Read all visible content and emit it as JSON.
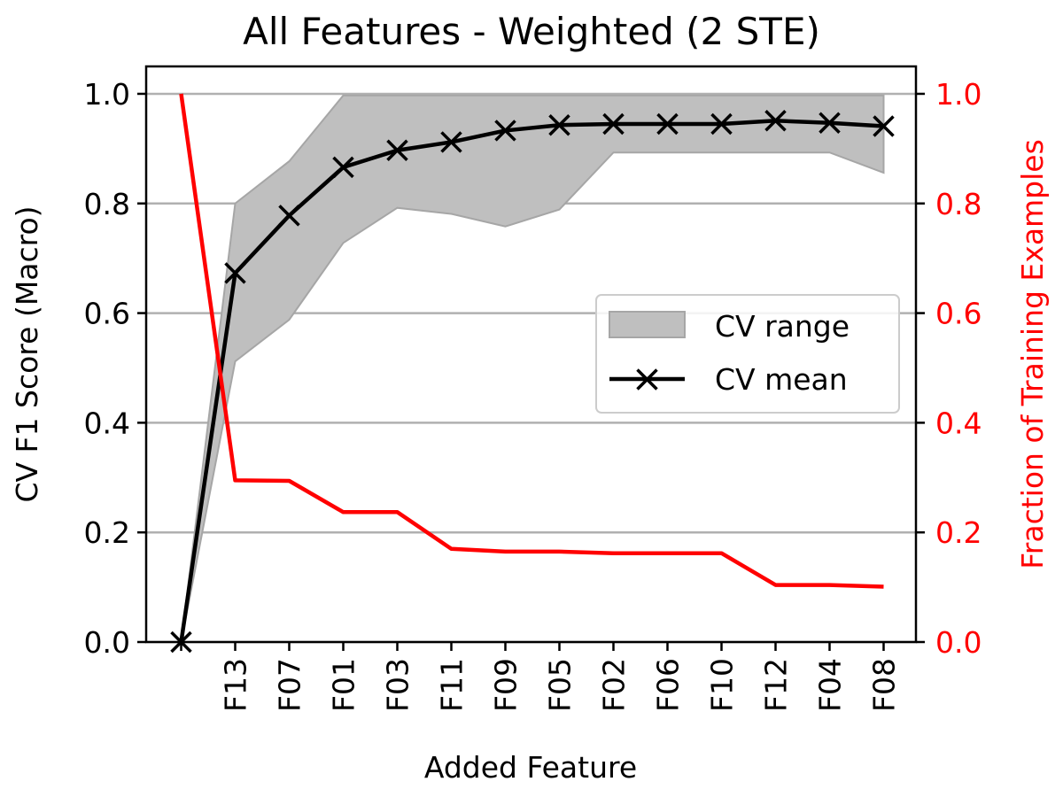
{
  "chart_data": {
    "type": "line",
    "title": "All Features - Weighted (2 STE)",
    "xlabel": "Added Feature",
    "ylabel": "CV F1 Score (Macro)",
    "ylabel_right": "Fraction of Training Examples",
    "categories": [
      "",
      "F13",
      "F07",
      "F01",
      "F03",
      "F11",
      "F09",
      "F05",
      "F02",
      "F06",
      "F10",
      "F12",
      "F04",
      "F08"
    ],
    "ylim": [
      0,
      1.05
    ],
    "ylim_right": [
      0,
      1.05
    ],
    "yticks": [
      "0.0",
      "0.2",
      "0.4",
      "0.6",
      "0.8",
      "1.0"
    ],
    "yticks_right": [
      "0.0",
      "0.2",
      "0.4",
      "0.6",
      "0.8",
      "1.0"
    ],
    "grid": "horizontal",
    "legend_position": "center-right",
    "series": [
      {
        "name": "CV mean",
        "color": "#000000",
        "marker": "x",
        "values": [
          0.0,
          0.673,
          0.778,
          0.866,
          0.897,
          0.912,
          0.933,
          0.943,
          0.945,
          0.945,
          0.945,
          0.951,
          0.947,
          0.941
        ]
      },
      {
        "name": "CV range",
        "type": "band",
        "color": "#bfbfbf",
        "upper": [
          0.0,
          0.8,
          0.877,
          0.997,
          0.997,
          0.997,
          0.997,
          0.997,
          0.997,
          0.997,
          0.997,
          0.997,
          0.997,
          0.997
        ],
        "lower": [
          0.0,
          0.512,
          0.588,
          0.728,
          0.792,
          0.781,
          0.758,
          0.789,
          0.893,
          0.893,
          0.893,
          0.893,
          0.893,
          0.856
        ]
      },
      {
        "name": "",
        "axis": "right",
        "color": "#ff0000",
        "values": [
          1.0,
          0.295,
          0.294,
          0.237,
          0.237,
          0.17,
          0.165,
          0.165,
          0.162,
          0.162,
          0.162,
          0.104,
          0.104,
          0.101
        ]
      }
    ]
  }
}
